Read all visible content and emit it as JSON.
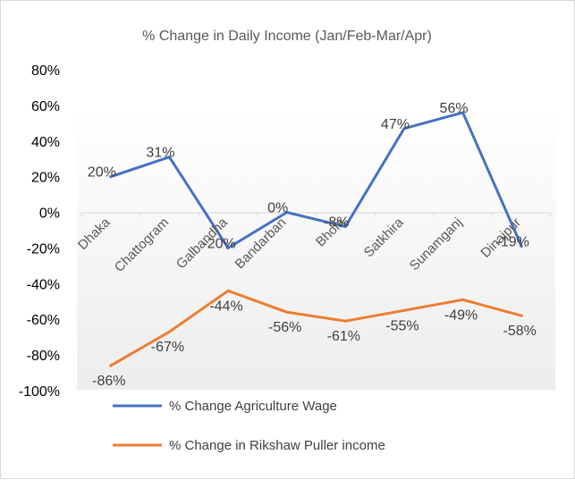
{
  "chart_data": {
    "type": "line",
    "title": "% Change in Daily Income (Jan/Feb-Mar/Apr)",
    "categories": [
      "Dhaka",
      "Chattogram",
      "Galbandha",
      "Bandarban",
      "Bhola",
      "Satkhira",
      "Sunamganj",
      "Dinajpur"
    ],
    "y_tick_labels": [
      "80%",
      "60%",
      "40%",
      "20%",
      "0%",
      "-20%",
      "-40%",
      "-60%",
      "-80%",
      "-100%"
    ],
    "ylim": [
      -100,
      80
    ],
    "y_step": 20,
    "grid": false,
    "legend_position": "bottom",
    "series": [
      {
        "name": "% Change Agriculture Wage",
        "color": "#4472c4",
        "values": [
          20,
          31,
          -20,
          0,
          -8,
          47,
          56,
          -19
        ],
        "labels": [
          "20%",
          "31%",
          "-20%",
          "0%",
          "-8%",
          "47%",
          "56%",
          "-19%"
        ]
      },
      {
        "name": "% Change in Rikshaw Puller income",
        "color": "#ed7d31",
        "values": [
          -86,
          -67,
          -44,
          -56,
          -61,
          -55,
          -49,
          -58
        ],
        "labels": [
          "-86%",
          "-67%",
          "-44%",
          "-56%",
          "-61%",
          "-55%",
          "-49%",
          "-58%"
        ]
      }
    ]
  }
}
